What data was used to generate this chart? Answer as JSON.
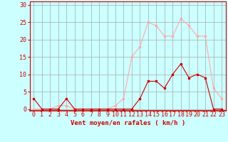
{
  "x": [
    0,
    1,
    2,
    3,
    4,
    5,
    6,
    7,
    8,
    9,
    10,
    11,
    12,
    13,
    14,
    15,
    16,
    17,
    18,
    19,
    20,
    21,
    22,
    23
  ],
  "wind_avg": [
    3,
    0,
    0,
    0,
    3,
    0,
    0,
    0,
    0,
    0,
    0,
    0,
    0,
    3,
    8,
    8,
    6,
    10,
    13,
    9,
    10,
    9,
    0,
    0
  ],
  "wind_gust": [
    0,
    0,
    0,
    1,
    1,
    0,
    0,
    0,
    0,
    0,
    1,
    3,
    15,
    18,
    25,
    24,
    21,
    21,
    26,
    24,
    21,
    21,
    6,
    3
  ],
  "color_avg": "#cc0000",
  "color_gust": "#ffaaaa",
  "bg_color": "#ccffff",
  "grid_color": "#aaaaaa",
  "xlabel": "Vent moyen/en rafales ( km/h )",
  "ylabel_ticks": [
    0,
    5,
    10,
    15,
    20,
    25,
    30
  ],
  "ylim": [
    -0.5,
    31
  ],
  "xlim": [
    -0.5,
    23.5
  ],
  "xlabel_fontsize": 6.5,
  "tick_fontsize": 6
}
